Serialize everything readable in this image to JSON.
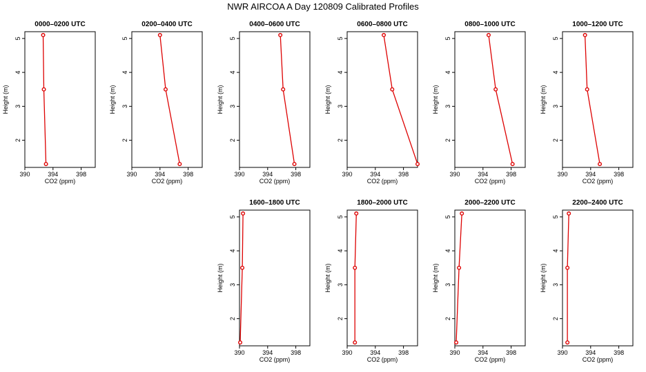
{
  "chart_data": {
    "type": "line",
    "title": "NWR AIRCOA A  Day 120809  Calibrated Profiles",
    "xlabel": "CO2 (ppm)",
    "ylabel": "Height (m)",
    "xlim": [
      390,
      400
    ],
    "ylim": [
      1.2,
      5.2
    ],
    "xticks": [
      390,
      394,
      398
    ],
    "yticks": [
      2,
      3,
      4,
      5
    ],
    "line_color": "#dd0000",
    "panels": [
      {
        "title": "0000–0200 UTC",
        "row": 0,
        "col": 0,
        "co2": [
          393.0,
          392.7,
          392.6
        ],
        "height": [
          1.3,
          3.5,
          5.1
        ]
      },
      {
        "title": "0200–0400 UTC",
        "row": 0,
        "col": 1,
        "co2": [
          396.8,
          394.8,
          394.0
        ],
        "height": [
          1.3,
          3.5,
          5.1
        ]
      },
      {
        "title": "0400–0600 UTC",
        "row": 0,
        "col": 2,
        "co2": [
          397.8,
          396.2,
          395.8
        ],
        "height": [
          1.3,
          3.5,
          5.1
        ]
      },
      {
        "title": "0600–0800 UTC",
        "row": 0,
        "col": 3,
        "co2": [
          400.0,
          396.4,
          395.2
        ],
        "height": [
          1.3,
          3.5,
          5.1
        ]
      },
      {
        "title": "0800–1000 UTC",
        "row": 0,
        "col": 4,
        "co2": [
          398.2,
          395.8,
          394.8
        ],
        "height": [
          1.3,
          3.5,
          5.1
        ]
      },
      {
        "title": "1000–1200 UTC",
        "row": 0,
        "col": 5,
        "co2": [
          395.3,
          393.5,
          393.2
        ],
        "height": [
          1.3,
          3.5,
          5.1
        ]
      },
      {
        "title": "1600–1800 UTC",
        "row": 1,
        "col": 2,
        "co2": [
          390.1,
          390.4,
          390.5
        ],
        "height": [
          1.3,
          3.5,
          5.1
        ]
      },
      {
        "title": "1800–2000 UTC",
        "row": 1,
        "col": 3,
        "co2": [
          391.1,
          391.1,
          391.3
        ],
        "height": [
          1.3,
          3.5,
          5.1
        ]
      },
      {
        "title": "2000–2200 UTC",
        "row": 1,
        "col": 4,
        "co2": [
          390.2,
          390.6,
          391.0
        ],
        "height": [
          1.3,
          3.5,
          5.1
        ]
      },
      {
        "title": "2200–2400 UTC",
        "row": 1,
        "col": 5,
        "co2": [
          390.7,
          390.7,
          390.9
        ],
        "height": [
          1.3,
          3.5,
          5.1
        ]
      }
    ]
  }
}
